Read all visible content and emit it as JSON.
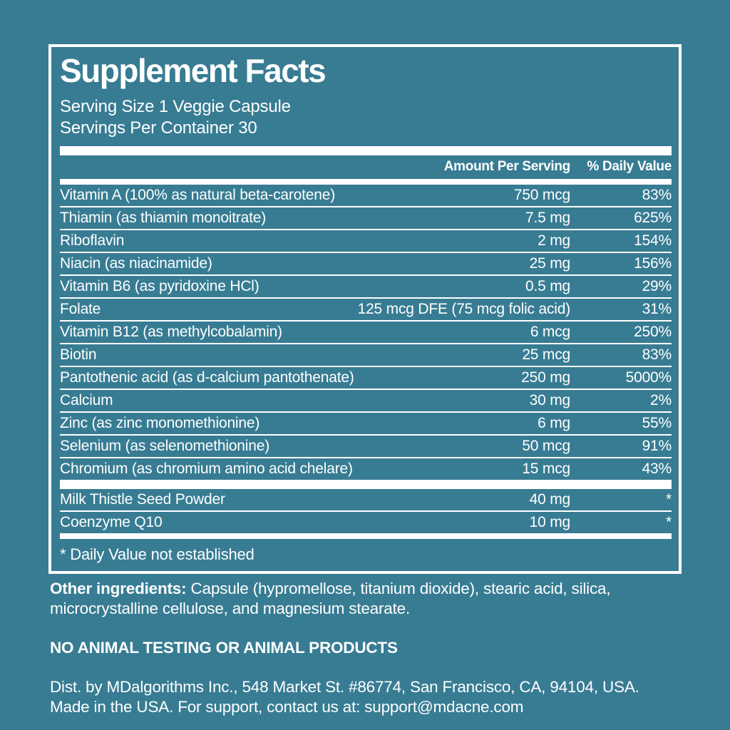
{
  "colors": {
    "background": "#377C93",
    "text": "#FFFFFF"
  },
  "panel": {
    "title": "Supplement Facts",
    "serving_size": "Serving Size 1 Veggie Capsule",
    "servings_per_container": "Servings Per Container 30",
    "columns": {
      "amount": "Amount Per Serving",
      "daily_value": "% Daily Value"
    },
    "nutrients": [
      {
        "name": "Vitamin A (100% as natural beta-carotene)",
        "amount": "750 mcg",
        "dv": "83%"
      },
      {
        "name": "Thiamin (as thiamin monoitrate)",
        "amount": "7.5 mg",
        "dv": "625%"
      },
      {
        "name": "Riboflavin",
        "amount": "2 mg",
        "dv": "154%"
      },
      {
        "name": "Niacin (as niacinamide)",
        "amount": "25 mg",
        "dv": "156%"
      },
      {
        "name": "Vitamin B6 (as pyridoxine HCl)",
        "amount": "0.5 mg",
        "dv": "29%"
      },
      {
        "name": "Folate",
        "amount": "125 mcg DFE (75 mcg folic acid)",
        "dv": "31%"
      },
      {
        "name": "Vitamin B12 (as methylcobalamin)",
        "amount": "6 mcg",
        "dv": "250%"
      },
      {
        "name": "Biotin",
        "amount": "25 mcg",
        "dv": "83%"
      },
      {
        "name": "Pantothenic acid (as d-calcium pantothenate)",
        "amount": "250 mg",
        "dv": "5000%"
      },
      {
        "name": "Calcium",
        "amount": "30 mg",
        "dv": "2%"
      },
      {
        "name": "Zinc (as zinc monomethionine)",
        "amount": "6 mg",
        "dv": "55%"
      },
      {
        "name": "Selenium (as selenomethionine)",
        "amount": "50 mcg",
        "dv": "91%"
      },
      {
        "name": "Chromium (as chromium amino acid chelare)",
        "amount": "15 mcg",
        "dv": "43%"
      }
    ],
    "extras": [
      {
        "name": "Milk Thistle Seed Powder",
        "amount": "40 mg",
        "dv": "*"
      },
      {
        "name": "Coenzyme Q10",
        "amount": "10 mg",
        "dv": "*"
      }
    ],
    "footnote": "* Daily Value not established"
  },
  "other_ingredients": {
    "label": "Other ingredients:",
    "text": " Capsule (hypromellose, titanium dioxide), stearic acid, silica, microcrystalline cellulose, and magnesium stearate."
  },
  "claims": "NO ANIMAL TESTING OR ANIMAL PRODUCTS",
  "distribution": {
    "line1": "Dist. by MDalgorithms Inc., 548 Market St. #86774, San Francisco, CA, 94104, USA.",
    "line2": "Made in the USA. For support, contact us at: support@mdacne.com"
  }
}
